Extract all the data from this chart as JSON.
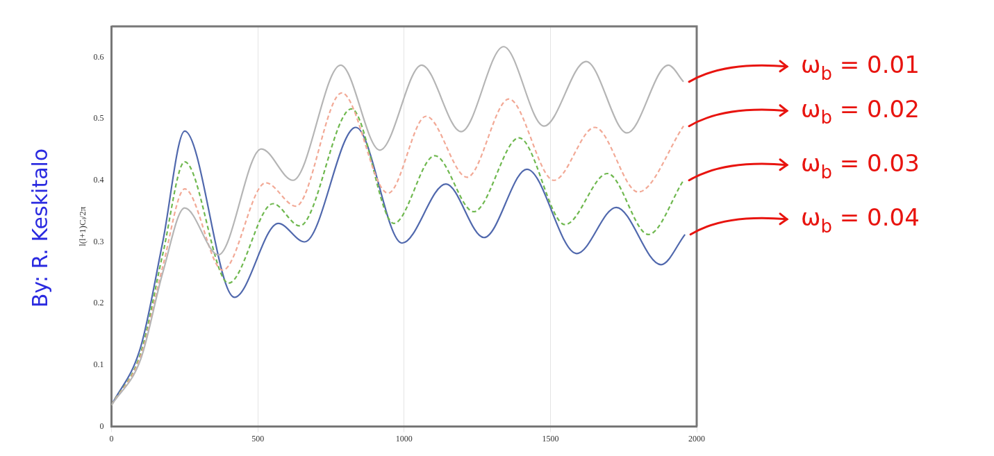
{
  "chart_data": {
    "type": "line",
    "ylabel": "l(l+1)Cₗ/2π",
    "xlim": [
      0,
      2000
    ],
    "xticks": [
      0,
      500,
      1000,
      1500,
      2000
    ],
    "ylim": [
      0,
      0.65
    ],
    "yticks": [
      0,
      0.1,
      0.2,
      0.3,
      0.4,
      0.5,
      0.6
    ],
    "grid": "x",
    "legend": false,
    "marker": "none",
    "annotations": [
      "By: R. Keskitalo"
    ],
    "series": [
      {
        "name": "ω$_{b}$ = 0.01",
        "color": "#b5b5b5",
        "line_style": "solid",
        "x": [
          0,
          100,
          175,
          250,
          365,
          512,
          620,
          783,
          917,
          1060,
          1195,
          1340,
          1478,
          1622,
          1762,
          1903,
          1955
        ],
        "values": [
          0.035,
          0.11,
          0.25,
          0.355,
          0.279,
          0.451,
          0.4,
          0.587,
          0.449,
          0.587,
          0.479,
          0.617,
          0.488,
          0.593,
          0.477,
          0.587,
          0.56
        ]
      },
      {
        "name": "ω$_{b}$ = 0.02",
        "color": "#f2a996",
        "line_style": "dashed",
        "x": [
          0,
          100,
          175,
          250,
          380,
          527,
          630,
          787,
          945,
          1075,
          1215,
          1358,
          1512,
          1652,
          1800,
          1955
        ],
        "values": [
          0.035,
          0.115,
          0.26,
          0.386,
          0.254,
          0.396,
          0.358,
          0.542,
          0.379,
          0.504,
          0.405,
          0.532,
          0.4,
          0.486,
          0.381,
          0.488
        ]
      },
      {
        "name": "ω$_{b}$ = 0.03",
        "color": "#6fb84f",
        "line_style": "dashed",
        "x": [
          0,
          100,
          175,
          250,
          400,
          552,
          643,
          820,
          965,
          1105,
          1238,
          1393,
          1550,
          1695,
          1835,
          1955
        ],
        "values": [
          0.035,
          0.12,
          0.28,
          0.43,
          0.233,
          0.362,
          0.326,
          0.516,
          0.33,
          0.44,
          0.349,
          0.469,
          0.328,
          0.411,
          0.312,
          0.4
        ]
      },
      {
        "name": "ω$_{b}$ = 0.04",
        "color": "#5068ad",
        "line_style": "solid",
        "x": [
          0,
          100,
          175,
          250,
          420,
          570,
          660,
          835,
          993,
          1143,
          1273,
          1420,
          1590,
          1725,
          1878,
          1960
        ],
        "values": [
          0.035,
          0.13,
          0.3,
          0.48,
          0.21,
          0.33,
          0.3,
          0.486,
          0.298,
          0.394,
          0.307,
          0.418,
          0.281,
          0.356,
          0.263,
          0.312
        ]
      }
    ]
  }
}
